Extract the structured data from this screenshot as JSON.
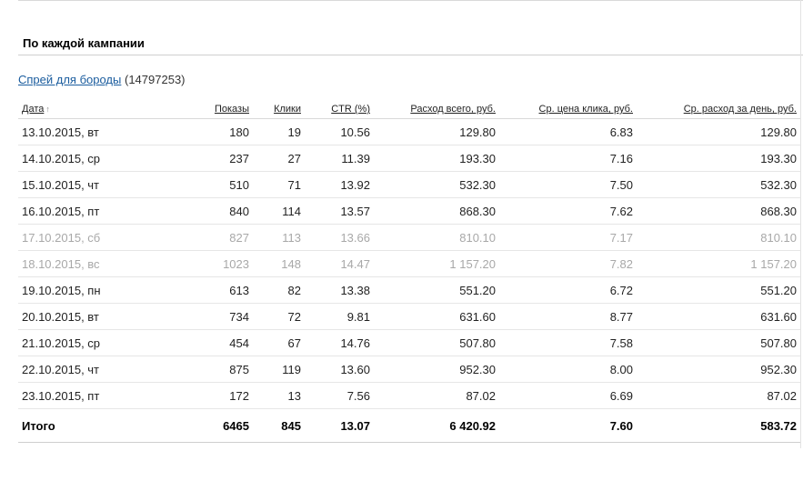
{
  "section": {
    "title": "По каждой кампании"
  },
  "campaign": {
    "name": "Спрей для бороды",
    "id": "(14797253)"
  },
  "table": {
    "headers": {
      "date": "Дата",
      "shows": "Показы",
      "clicks": "Клики",
      "ctr": "CTR (%)",
      "spend": "Расход всего, руб.",
      "cpc": "Ср. цена клика, руб.",
      "daily": "Ср. расход за день, руб."
    },
    "sort_indicator": "↑",
    "rows": [
      {
        "date": "13.10.2015, вт",
        "shows": "180",
        "clicks": "19",
        "ctr": "10.56",
        "spend": "129.80",
        "cpc": "6.83",
        "daily": "129.80",
        "weekend": false
      },
      {
        "date": "14.10.2015, ср",
        "shows": "237",
        "clicks": "27",
        "ctr": "11.39",
        "spend": "193.30",
        "cpc": "7.16",
        "daily": "193.30",
        "weekend": false
      },
      {
        "date": "15.10.2015, чт",
        "shows": "510",
        "clicks": "71",
        "ctr": "13.92",
        "spend": "532.30",
        "cpc": "7.50",
        "daily": "532.30",
        "weekend": false
      },
      {
        "date": "16.10.2015, пт",
        "shows": "840",
        "clicks": "114",
        "ctr": "13.57",
        "spend": "868.30",
        "cpc": "7.62",
        "daily": "868.30",
        "weekend": false
      },
      {
        "date": "17.10.2015, сб",
        "shows": "827",
        "clicks": "113",
        "ctr": "13.66",
        "spend": "810.10",
        "cpc": "7.17",
        "daily": "810.10",
        "weekend": true
      },
      {
        "date": "18.10.2015, вс",
        "shows": "1023",
        "clicks": "148",
        "ctr": "14.47",
        "spend": "1 157.20",
        "cpc": "7.82",
        "daily": "1 157.20",
        "weekend": true
      },
      {
        "date": "19.10.2015, пн",
        "shows": "613",
        "clicks": "82",
        "ctr": "13.38",
        "spend": "551.20",
        "cpc": "6.72",
        "daily": "551.20",
        "weekend": false
      },
      {
        "date": "20.10.2015, вт",
        "shows": "734",
        "clicks": "72",
        "ctr": "9.81",
        "spend": "631.60",
        "cpc": "8.77",
        "daily": "631.60",
        "weekend": false
      },
      {
        "date": "21.10.2015, ср",
        "shows": "454",
        "clicks": "67",
        "ctr": "14.76",
        "spend": "507.80",
        "cpc": "7.58",
        "daily": "507.80",
        "weekend": false
      },
      {
        "date": "22.10.2015, чт",
        "shows": "875",
        "clicks": "119",
        "ctr": "13.60",
        "spend": "952.30",
        "cpc": "8.00",
        "daily": "952.30",
        "weekend": false
      },
      {
        "date": "23.10.2015, пт",
        "shows": "172",
        "clicks": "13",
        "ctr": "7.56",
        "spend": "87.02",
        "cpc": "6.69",
        "daily": "87.02",
        "weekend": false
      }
    ],
    "total": {
      "date": "Итого",
      "shows": "6465",
      "clicks": "845",
      "ctr": "13.07",
      "spend": "6 420.92",
      "cpc": "7.60",
      "daily": "583.72"
    }
  }
}
